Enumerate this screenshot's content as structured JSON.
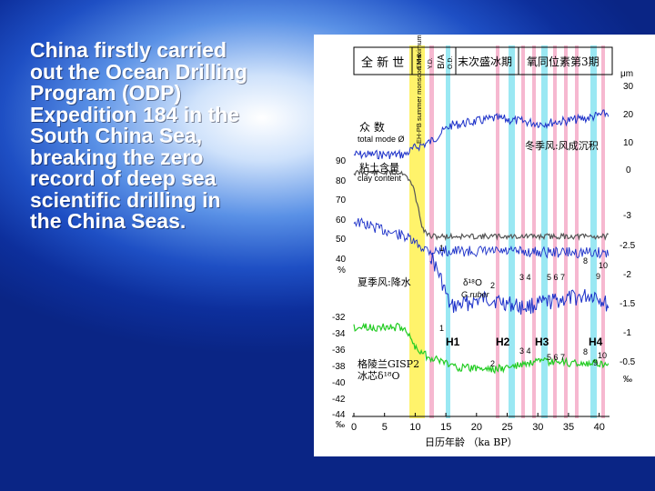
{
  "slide": {
    "text_lines": [
      "China firstly carried",
      "out the Ocean Drilling",
      "Program (ODP)",
      "Expedition 184 in the",
      "South China Sea,",
      "breaking the zero",
      "record of deep sea",
      "scientific drilling in",
      "the China Seas."
    ]
  },
  "figure": {
    "header": {
      "holocene": "全 新 世",
      "yd": "Y.D.",
      "ehhi": "EHHI",
      "ba": "B/A",
      "od": "O.D.",
      "last_glacial": "末次盛冰期",
      "isotope_stage3": "氧同位素第3期"
    },
    "band_label": "EH-PB summer monsoon Maximum",
    "right_unit": "μm",
    "right_ticks_grain": [
      "30",
      "20",
      "10",
      "0"
    ],
    "right_ticks_d18o": [
      "-3",
      "-2.5",
      "-2",
      "-1.5",
      "-1",
      "-0.5"
    ],
    "right_unit_bottom": "‰",
    "left_ticks_clay": [
      "90",
      "80",
      "70",
      "60",
      "50",
      "40"
    ],
    "left_unit_clay": "%",
    "left_ticks_gisp": [
      "-32",
      "-34",
      "-36",
      "-38",
      "-40",
      "-42",
      "-44"
    ],
    "left_unit_gisp": "‰",
    "x_ticks": [
      "0",
      "5",
      "10",
      "15",
      "20",
      "25",
      "30",
      "35",
      "40"
    ],
    "x_label": "日历年龄 （ka BP）",
    "annotations": {
      "grain_mode_cn": "众  数",
      "grain_mode_en": "total mode Ø",
      "clay_cn": "粘土含量",
      "clay_en": "clay content",
      "winter_monsoon": "冬季风:风成沉积",
      "summer_monsoon": "夏季风:降水",
      "d18o": "δ¹⁸O",
      "ruber": "G.ruber",
      "greenland_cn": "格陵兰GISP2",
      "ice_core": "冰芯δ¹⁸O",
      "heinrich": [
        "H1",
        "H2",
        "H3",
        "H4"
      ],
      "events_upper": [
        "1",
        "2",
        "3 4",
        "5 6 7",
        "8",
        "10",
        "9"
      ],
      "events_lower": [
        "1",
        "2",
        "3 4",
        "5 6 7",
        "8",
        "10",
        "9"
      ]
    },
    "colors": {
      "grain_series": "#1a2fc8",
      "clay_series": "#555555",
      "d18o_series": "#1a2fc8",
      "gisp2_series": "#22cc22",
      "yellow_band": "#fff36b",
      "pink_line": "#f4a6c4",
      "cyan_band": "#8fe6f2"
    }
  }
}
